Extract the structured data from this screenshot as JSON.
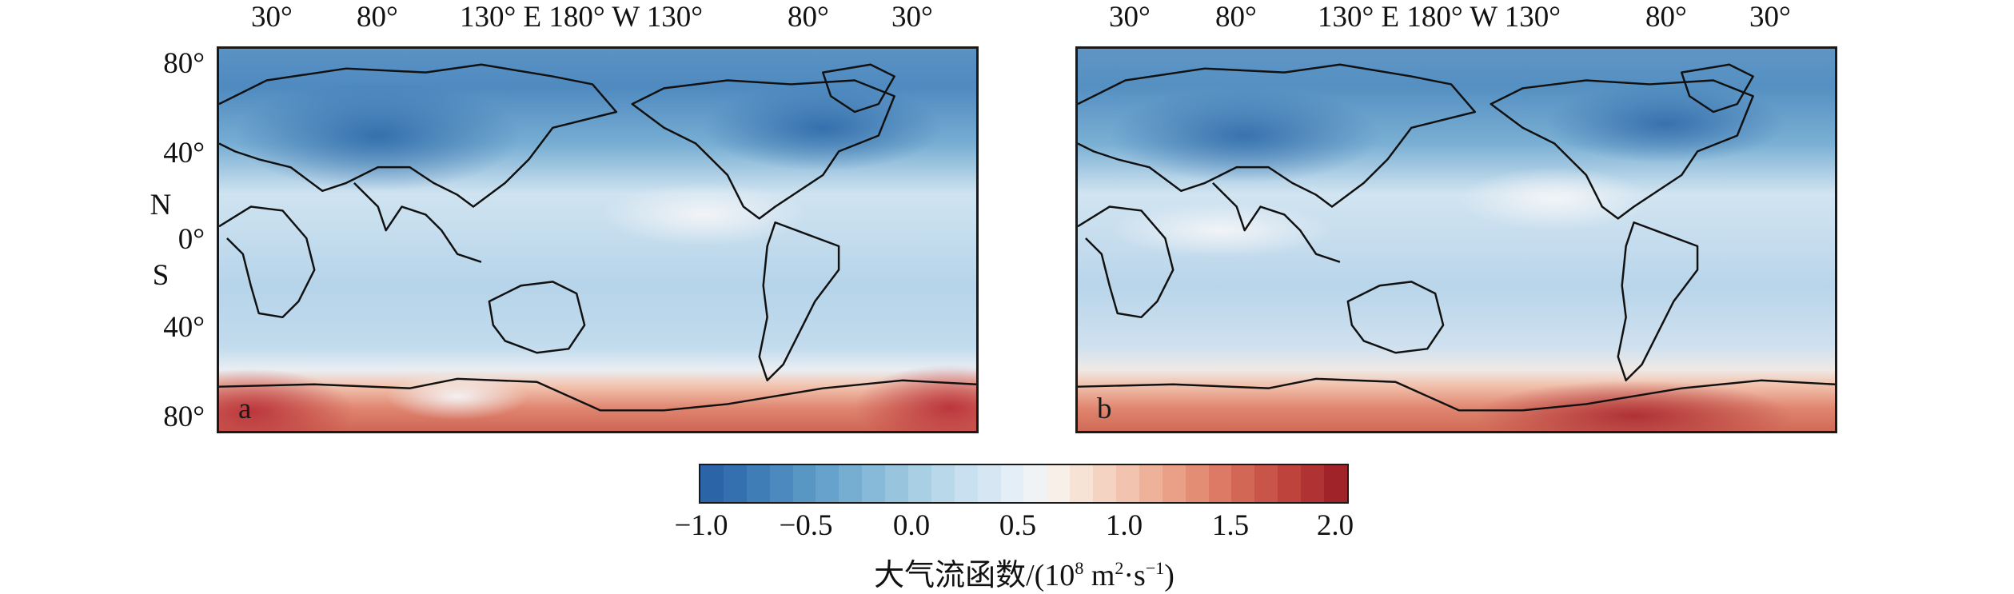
{
  "top_axis": {
    "labels": [
      "30°",
      "80°",
      "130° E 180° W 130°",
      "80°",
      "30°"
    ]
  },
  "left_axis": {
    "lat_80n": "80°",
    "lat_40n": "40°",
    "n_label": "N",
    "lat_0": "0°",
    "s_label": "S",
    "lat_40s": "40°",
    "lat_80s": "80°"
  },
  "panels": [
    {
      "id": "a",
      "letter": "a"
    },
    {
      "id": "b",
      "letter": "b"
    }
  ],
  "colorbar": {
    "ticks": [
      "−1.0",
      "−0.5",
      "0.0",
      "0.5",
      "1.0",
      "1.5",
      "2.0"
    ],
    "title_main": "大气流函数/(10",
    "title_exp1": "8",
    "title_mid": " m",
    "title_exp2": "2",
    "title_mid2": "·s",
    "title_exp3": "−1",
    "title_end": ")",
    "range": [
      -1.0,
      2.0
    ],
    "colors": [
      "#2b65a8",
      "#3470b0",
      "#3f7db7",
      "#4b89be",
      "#5896c4",
      "#66a2cb",
      "#76aed2",
      "#87b9d8",
      "#98c4de",
      "#a9cfe4",
      "#b9d8ea",
      "#c8e0ef",
      "#d6e7f3",
      "#e3eef6",
      "#f0f3f6",
      "#f8efe9",
      "#f7e2d6",
      "#f5d3c2",
      "#f2c3ae",
      "#eeb29a",
      "#e9a087",
      "#e38d75",
      "#dc7a65",
      "#d36756",
      "#c95548",
      "#bd433c",
      "#b03232",
      "#a0232a"
    ]
  }
}
